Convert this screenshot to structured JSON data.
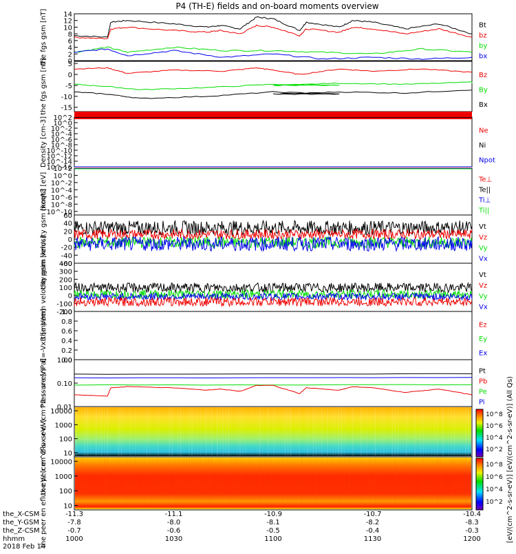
{
  "title": "P4 (TH-E) fields and on-board moments overview",
  "footer_date": "2018 Feb 14",
  "xaxis_rows": [
    {
      "label": "the_X-CSM",
      "values": [
        "-11.3",
        "-11.1",
        "-10.9",
        "-10.7",
        "-10.4"
      ]
    },
    {
      "label": "the_Y-GSM",
      "values": [
        "-7.8",
        "-8.0",
        "-8.1",
        "-8.2",
        "-8.3"
      ]
    },
    {
      "label": "the_Z-CSM",
      "values": [
        "-0.7",
        "-0.6",
        "-0.5",
        "-0.4",
        "-0.3"
      ]
    },
    {
      "label": "hhmm",
      "values": [
        "1000",
        "1030",
        "1100",
        "1130",
        "1200"
      ]
    }
  ],
  "colorbar_label": "[eV/(cm^2-s-sr-eV)] [eV/(cm^2-s-sr-eV)] (All Qs)",
  "colorbar_ticks": [
    "10^8",
    "10^6",
    "10^4",
    "10^2",
    "10^8",
    "10^6",
    "10^4",
    "10^2"
  ],
  "colors": {
    "black": "#000000",
    "red": "#ee0000",
    "green": "#00dd00",
    "blue": "#0000ee"
  },
  "chart_data": [
    {
      "id": "fgs_btot",
      "type": "line",
      "ylabel": "the fgs gsm [nT]",
      "yticks": [
        "14",
        "12",
        "10",
        "8",
        "6",
        "4",
        "2",
        "0"
      ],
      "ylim": [
        0,
        14
      ],
      "legend": [
        {
          "text": "Bt",
          "color": "black"
        },
        {
          "text": "bz",
          "color": "red"
        },
        {
          "text": "by",
          "color": "green"
        },
        {
          "text": "bx",
          "color": "blue"
        }
      ],
      "series": [
        {
          "name": "Bt",
          "color": "black",
          "x": [
            1000,
            1010,
            1011,
            1016,
            1030,
            1040,
            1044,
            1050,
            1055,
            1100,
            1108,
            1110,
            1120,
            1124,
            1130,
            1140,
            1150,
            1200
          ],
          "y": [
            7.5,
            7,
            11.5,
            12,
            11,
            10,
            10.5,
            9.5,
            13,
            12.5,
            9,
            11.5,
            10,
            12,
            11.5,
            9.5,
            11,
            8
          ]
        },
        {
          "name": "bz",
          "color": "red",
          "x": [
            1000,
            1010,
            1011,
            1016,
            1030,
            1040,
            1044,
            1050,
            1055,
            1100,
            1108,
            1110,
            1120,
            1124,
            1130,
            1140,
            1150,
            1200
          ],
          "y": [
            7,
            6.5,
            9.5,
            10,
            9,
            8.5,
            9,
            8,
            10.5,
            10,
            7.5,
            9.5,
            8.5,
            10,
            9.5,
            8,
            9.5,
            7
          ]
        },
        {
          "name": "by",
          "color": "green",
          "x": [
            1000,
            1010,
            1016,
            1030,
            1045,
            1100,
            1115,
            1130,
            1145,
            1200
          ],
          "y": [
            2.5,
            4,
            2.5,
            4,
            3,
            3,
            2.5,
            2,
            3.5,
            2.5
          ]
        },
        {
          "name": "bx",
          "color": "blue",
          "x": [
            1000,
            1010,
            1016,
            1030,
            1045,
            1100,
            1115,
            1130,
            1145,
            1200
          ],
          "y": [
            2.5,
            3.5,
            1.5,
            3,
            1,
            2,
            0.5,
            1,
            0.5,
            1
          ]
        }
      ]
    },
    {
      "id": "fgs_components",
      "type": "line",
      "ylabel": "the fgs gsm [nT]",
      "yticks": [
        "5",
        "0",
        "-5",
        "-10",
        "-15"
      ],
      "ylim": [
        -17,
        6
      ],
      "legend": [
        {
          "text": "Bz",
          "color": "red"
        },
        {
          "text": "By",
          "color": "green"
        },
        {
          "text": "Bx",
          "color": "black"
        }
      ],
      "series": [
        {
          "name": "Bz",
          "color": "red",
          "x": [
            1000,
            1010,
            1016,
            1030,
            1045,
            1055,
            1100,
            1108,
            1120,
            1130,
            1145,
            1200
          ],
          "y": [
            2.5,
            3,
            0.5,
            2,
            1.5,
            3,
            2,
            0,
            2.5,
            1.5,
            2.5,
            1
          ]
        },
        {
          "name": "By",
          "color": "green",
          "x": [
            1000,
            1010,
            1020,
            1040,
            1060,
            1080,
            1100,
            1120,
            1140,
            1160,
            1200
          ],
          "y": [
            -4.5,
            -5.5,
            -7,
            -6,
            -4.5,
            -5,
            -5,
            -4,
            -4.5,
            -3.5,
            -4
          ]
        },
        {
          "name": "Bx",
          "color": "black",
          "x": [
            1000,
            1010,
            1020,
            1040,
            1060,
            1080,
            1100,
            1120,
            1140,
            1160,
            1200
          ],
          "y": [
            -8,
            -9,
            -11,
            -10,
            -8,
            -9,
            -9,
            -8,
            -8.5,
            -7,
            -6.5
          ]
        }
      ]
    },
    {
      "id": "density",
      "type": "line",
      "ylabel": "Density [cm-3]",
      "yticks": [
        "10^2",
        "10^0",
        "10^-2",
        "10^-4",
        "10^-6",
        "10^-8",
        "10^-10",
        "10^-12",
        "10^-14",
        "10^-16"
      ],
      "ylim": [
        -16,
        2
      ],
      "legend": [
        {
          "text": "Ne",
          "color": "red"
        },
        {
          "text": "Ni",
          "color": "black"
        },
        {
          "text": "Npot",
          "color": "blue"
        }
      ],
      "series": [
        {
          "name": "Ne",
          "color": "red",
          "x": [
            1000,
            1200
          ],
          "y": [
            2,
            2
          ]
        },
        {
          "name": "Ni",
          "color": "black",
          "x": [
            1000,
            1200
          ],
          "y": [
            1.9,
            1.9
          ]
        },
        {
          "name": "Npot",
          "color": "blue",
          "x": [
            1000,
            1200
          ],
          "y": [
            -16,
            -16
          ]
        }
      ]
    },
    {
      "id": "temperature",
      "type": "line",
      "ylabel": "moqt3 [eV]",
      "yticks": [
        "10^2",
        "10^0",
        "10^-2",
        "10^-4",
        "10^-6",
        "10^-8",
        "10^-10"
      ],
      "ylim": [
        -11,
        2
      ],
      "legend": [
        {
          "text": "Te⊥",
          "color": "red"
        },
        {
          "text": "Te||",
          "color": "black"
        },
        {
          "text": "Ti⊥",
          "color": "blue"
        },
        {
          "text": "Ti||",
          "color": "green"
        }
      ],
      "series": [
        {
          "name": "Te⊥",
          "color": "red",
          "x": [
            1000,
            1200
          ],
          "y": [
            2,
            2
          ]
        },
        {
          "name": "Ti⊥",
          "color": "blue",
          "x": [
            1000,
            1200
          ],
          "y": [
            1.9,
            1.9
          ]
        },
        {
          "name": "Ti||",
          "color": "green",
          "x": [
            1000,
            1200
          ],
          "y": [
            1.8,
            1.8
          ]
        }
      ]
    },
    {
      "id": "peim_velocity",
      "type": "line",
      "ylabel": "the peim velocity gsm [km/s]",
      "yticks": [
        "60",
        "40",
        "20",
        "0",
        "-20",
        "-40",
        "-60"
      ],
      "ylim": [
        -60,
        60
      ],
      "legend": [
        {
          "text": "Vt",
          "color": "black"
        },
        {
          "text": "Vz",
          "color": "red"
        },
        {
          "text": "Vy",
          "color": "green"
        },
        {
          "text": "Vx",
          "color": "blue"
        }
      ],
      "series": [
        {
          "name": "Vt",
          "color": "black",
          "base": 28,
          "noise": 18,
          "points": 520
        },
        {
          "name": "Vz",
          "color": "red",
          "base": 12,
          "noise": 12,
          "points": 520
        },
        {
          "name": "Vy",
          "color": "green",
          "base": -8,
          "noise": 14,
          "points": 520
        },
        {
          "name": "Vx",
          "color": "blue",
          "base": -12,
          "noise": 18,
          "points": 520
        }
      ]
    },
    {
      "id": "peem_velocity",
      "type": "line",
      "ylabel": "the peem velocity gsm [km/s]",
      "yticks": [
        "400",
        "300",
        "200",
        "100",
        "0",
        "-100",
        "-200"
      ],
      "ylim": [
        -200,
        400
      ],
      "legend": [
        {
          "text": "Vt",
          "color": "black"
        },
        {
          "text": "Vz",
          "color": "red"
        },
        {
          "text": "Vy",
          "color": "green"
        },
        {
          "text": "Vx",
          "color": "blue"
        }
      ],
      "series": [
        {
          "name": "Vt",
          "color": "black",
          "base": 95,
          "noise": 60,
          "points": 520
        },
        {
          "name": "Vy",
          "color": "green",
          "base": 15,
          "noise": 55,
          "points": 520
        },
        {
          "name": "Vx",
          "color": "blue",
          "base": -15,
          "noise": 45,
          "points": 520
        },
        {
          "name": "Vz",
          "color": "red",
          "base": -80,
          "noise": 55,
          "points": 520
        }
      ]
    },
    {
      "id": "efield",
      "type": "line",
      "ylabel": "E=-VxB [mV/m]",
      "yticks": [
        "1.0",
        "0.8",
        "0.6",
        "0.4",
        "0.2",
        "0.0"
      ],
      "ylim": [
        0,
        1
      ],
      "legend": [
        {
          "text": "Ez",
          "color": "red"
        },
        {
          "text": "Ey",
          "color": "green"
        },
        {
          "text": "Ex",
          "color": "blue"
        }
      ],
      "series": []
    },
    {
      "id": "pressure",
      "type": "line",
      "ylabel": "Pressure [nPa]",
      "yticks": [
        "1.00",
        "0.10",
        "0.01"
      ],
      "ylim": [
        -2,
        0
      ],
      "legend": [
        {
          "text": "Pt",
          "color": "black"
        },
        {
          "text": "Pb",
          "color": "red"
        },
        {
          "text": "Pe",
          "color": "green"
        },
        {
          "text": "Pi",
          "color": "blue"
        }
      ],
      "series": [
        {
          "name": "Pt",
          "color": "black",
          "x": [
            1000,
            1200
          ],
          "y": [
            -0.62,
            -0.6
          ]
        },
        {
          "name": "Pi",
          "color": "blue",
          "x": [
            1000,
            1200
          ],
          "y": [
            -0.78,
            -0.76
          ]
        },
        {
          "name": "Pe",
          "color": "green",
          "x": [
            1000,
            1200
          ],
          "y": [
            -1.08,
            -1.07
          ]
        },
        {
          "name": "Pb",
          "color": "red",
          "x": [
            1000,
            1010,
            1011,
            1016,
            1030,
            1040,
            1044,
            1050,
            1055,
            1100,
            1108,
            1110,
            1120,
            1124,
            1130,
            1140,
            1150,
            1200
          ],
          "y": [
            -1.5,
            -1.55,
            -1.2,
            -1.15,
            -1.2,
            -1.3,
            -1.25,
            -1.35,
            -1.1,
            -1.1,
            -1.45,
            -1.2,
            -1.3,
            -1.15,
            -1.2,
            -1.4,
            -1.25,
            -1.5
          ]
        }
      ]
    },
    {
      "id": "peir_spec",
      "type": "heatmap",
      "ylabel": "the peir en eflux eV/ (cm^2-s- sr-eV)",
      "yticks": [
        "10000",
        "1000",
        "100",
        "10"
      ],
      "ylim": [
        5,
        20000
      ]
    },
    {
      "id": "peer_spec",
      "type": "heatmap",
      "ylabel": "the peer en eflux eV/ (cm^2-s- sr-eV)",
      "yticks": [
        "10000",
        "1000",
        "100",
        "10"
      ],
      "ylim": [
        5,
        20000
      ]
    }
  ]
}
